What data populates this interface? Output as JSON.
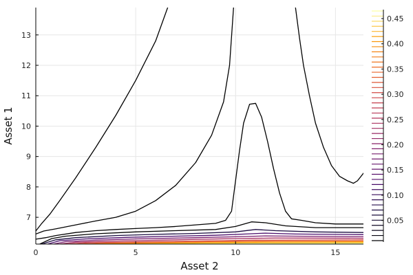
{
  "chart_data": {
    "type": "contour",
    "xlabel": "Asset 2",
    "ylabel": "Asset 1",
    "xlim": [
      0,
      16.4
    ],
    "ylim": [
      6.12,
      13.9
    ],
    "xticks": [
      0,
      5,
      10,
      15
    ],
    "yticks": [
      7,
      8,
      9,
      10,
      11,
      12,
      13
    ],
    "grid": true,
    "colorbar": {
      "colormap": "inferno",
      "range": [
        0.01,
        0.465
      ],
      "ticks": [
        0.05,
        0.1,
        0.15,
        0.2,
        0.25,
        0.3,
        0.35,
        0.4,
        0.45
      ],
      "tick_labels": [
        "0.05",
        "0.10",
        "0.15",
        "0.20",
        "0.25",
        "0.30",
        "0.35",
        "0.40",
        "0.45"
      ]
    },
    "contours": [
      {
        "level": 0.01,
        "color": "#000000",
        "points": [
          [
            0.0,
            6.55
          ],
          [
            0.3,
            6.8
          ],
          [
            0.7,
            7.1
          ],
          [
            1.2,
            7.55
          ],
          [
            2.0,
            8.3
          ],
          [
            3.0,
            9.3
          ],
          [
            4.0,
            10.35
          ],
          [
            5.0,
            11.5
          ],
          [
            6.0,
            12.8
          ],
          [
            6.6,
            13.9
          ]
        ]
      },
      {
        "level": 0.01,
        "color": "#000000",
        "points": [
          [
            0.0,
            6.45
          ],
          [
            0.4,
            6.55
          ],
          [
            1.0,
            6.62
          ],
          [
            2.0,
            6.75
          ],
          [
            3.0,
            6.88
          ],
          [
            4.0,
            7.0
          ],
          [
            5.0,
            7.2
          ],
          [
            6.0,
            7.55
          ],
          [
            7.0,
            8.05
          ],
          [
            8.0,
            8.8
          ],
          [
            8.8,
            9.7
          ],
          [
            9.4,
            10.8
          ],
          [
            9.7,
            12.0
          ],
          [
            9.9,
            13.9
          ]
        ]
      },
      {
        "level": 0.01,
        "color": "#000000",
        "points": [
          [
            13.0,
            13.9
          ],
          [
            13.2,
            12.9
          ],
          [
            13.4,
            12.0
          ],
          [
            13.7,
            11.0
          ],
          [
            14.0,
            10.1
          ],
          [
            14.4,
            9.3
          ],
          [
            14.8,
            8.7
          ],
          [
            15.2,
            8.35
          ],
          [
            15.6,
            8.2
          ],
          [
            15.9,
            8.12
          ],
          [
            16.1,
            8.2
          ],
          [
            16.4,
            8.45
          ]
        ]
      },
      {
        "level": 0.01,
        "color": "#000000",
        "points": [
          [
            0.0,
            6.28
          ],
          [
            0.5,
            6.33
          ],
          [
            1.0,
            6.4
          ],
          [
            2.0,
            6.5
          ],
          [
            3.0,
            6.56
          ],
          [
            4.0,
            6.6
          ],
          [
            5.0,
            6.63
          ],
          [
            6.0,
            6.66
          ],
          [
            7.0,
            6.7
          ],
          [
            8.0,
            6.75
          ],
          [
            9.0,
            6.8
          ],
          [
            9.5,
            6.9
          ],
          [
            9.8,
            7.2
          ],
          [
            10.0,
            8.2
          ],
          [
            10.2,
            9.2
          ],
          [
            10.4,
            10.1
          ],
          [
            10.7,
            10.72
          ],
          [
            11.0,
            10.75
          ],
          [
            11.3,
            10.3
          ],
          [
            11.6,
            9.5
          ],
          [
            11.9,
            8.6
          ],
          [
            12.2,
            7.8
          ],
          [
            12.5,
            7.2
          ],
          [
            12.8,
            6.95
          ],
          [
            13.3,
            6.9
          ],
          [
            14.0,
            6.82
          ],
          [
            15.0,
            6.78
          ],
          [
            16.4,
            6.78
          ]
        ]
      },
      {
        "level": 0.02,
        "color": "#000000",
        "points": [
          [
            0.2,
            6.12
          ],
          [
            0.8,
            6.3
          ],
          [
            1.5,
            6.38
          ],
          [
            3.0,
            6.46
          ],
          [
            5.0,
            6.52
          ],
          [
            7.0,
            6.56
          ],
          [
            9.0,
            6.6
          ],
          [
            10.0,
            6.7
          ],
          [
            10.8,
            6.85
          ],
          [
            11.5,
            6.82
          ],
          [
            12.5,
            6.72
          ],
          [
            14.0,
            6.66
          ],
          [
            16.4,
            6.66
          ]
        ]
      },
      {
        "level": 0.05,
        "color": "#1b0c41",
        "points": [
          [
            0.3,
            6.12
          ],
          [
            1.0,
            6.26
          ],
          [
            2.0,
            6.33
          ],
          [
            4.0,
            6.4
          ],
          [
            6.0,
            6.44
          ],
          [
            8.0,
            6.47
          ],
          [
            10.0,
            6.52
          ],
          [
            11.0,
            6.6
          ],
          [
            12.0,
            6.56
          ],
          [
            14.0,
            6.52
          ],
          [
            16.4,
            6.5
          ]
        ]
      },
      {
        "level": 0.1,
        "color": "#4a0c6b",
        "points": [
          [
            0.6,
            6.12
          ],
          [
            1.2,
            6.23
          ],
          [
            2.5,
            6.29
          ],
          [
            4.5,
            6.34
          ],
          [
            7.0,
            6.38
          ],
          [
            9.0,
            6.41
          ],
          [
            10.5,
            6.45
          ],
          [
            11.5,
            6.48
          ],
          [
            13.0,
            6.45
          ],
          [
            16.4,
            6.43
          ]
        ]
      },
      {
        "level": 0.15,
        "color": "#781c6d",
        "points": [
          [
            0.9,
            6.12
          ],
          [
            1.5,
            6.2
          ],
          [
            3.0,
            6.25
          ],
          [
            5.0,
            6.29
          ],
          [
            8.0,
            6.33
          ],
          [
            10.0,
            6.36
          ],
          [
            11.5,
            6.39
          ],
          [
            13.0,
            6.38
          ],
          [
            16.4,
            6.36
          ]
        ]
      },
      {
        "level": 0.2,
        "color": "#a52c60",
        "points": [
          [
            1.2,
            6.12
          ],
          [
            2.0,
            6.18
          ],
          [
            4.0,
            6.22
          ],
          [
            7.0,
            6.26
          ],
          [
            10.0,
            6.3
          ],
          [
            12.0,
            6.32
          ],
          [
            16.4,
            6.31
          ]
        ]
      },
      {
        "level": 0.25,
        "color": "#cf4446",
        "points": [
          [
            1.6,
            6.12
          ],
          [
            2.5,
            6.16
          ],
          [
            5.0,
            6.19
          ],
          [
            8.0,
            6.22
          ],
          [
            11.0,
            6.25
          ],
          [
            16.4,
            6.26
          ]
        ]
      },
      {
        "level": 0.3,
        "color": "#ed6925",
        "points": [
          [
            2.2,
            6.12
          ],
          [
            3.5,
            6.15
          ],
          [
            6.0,
            6.17
          ],
          [
            9.0,
            6.2
          ],
          [
            12.0,
            6.22
          ],
          [
            16.4,
            6.22
          ]
        ]
      },
      {
        "level": 0.35,
        "color": "#fb9b06",
        "points": [
          [
            3.0,
            6.12
          ],
          [
            5.0,
            6.14
          ],
          [
            8.0,
            6.16
          ],
          [
            11.0,
            6.18
          ],
          [
            16.4,
            6.19
          ]
        ]
      },
      {
        "level": 0.4,
        "color": "#f7d13d",
        "points": [
          [
            5.0,
            6.12
          ],
          [
            8.0,
            6.14
          ],
          [
            12.0,
            6.15
          ],
          [
            16.4,
            6.16
          ]
        ]
      },
      {
        "level": 0.45,
        "color": "#fcffa4",
        "points": [
          [
            8.0,
            6.12
          ],
          [
            12.0,
            6.13
          ],
          [
            16.4,
            6.135
          ]
        ]
      }
    ]
  }
}
